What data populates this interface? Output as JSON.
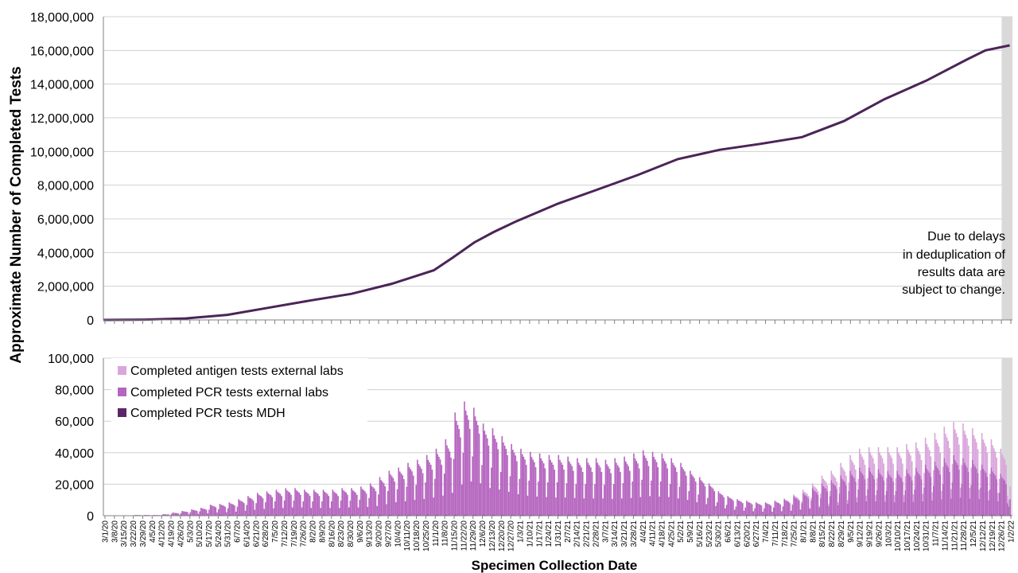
{
  "colors": {
    "cumulative_line": "#4B2458",
    "pcr_mdh": "#5C2566",
    "pcr_external": "#B565BF",
    "antigen_external": "#D9A6DC",
    "shade": "#D9D9D9",
    "grid": "#D0D0D0",
    "axis": "#808080"
  },
  "y_axis_label": "Approximate Number of Completed Tests",
  "x_axis_label": "Specimen Collection Date",
  "note_lines": [
    "Due to delays",
    "in deduplication of",
    "results data are",
    "subject to change."
  ],
  "chart_data": [
    {
      "type": "line",
      "title": "",
      "ylim": [
        0,
        18000000
      ],
      "y_ticks": [
        0,
        2000000,
        4000000,
        6000000,
        8000000,
        10000000,
        12000000,
        14000000,
        16000000,
        18000000
      ],
      "y_tick_labels": [
        "0",
        "2,000,000",
        "4,000,000",
        "6,000,000",
        "8,000,000",
        "10,000,000",
        "12,000,000",
        "14,000,000",
        "16,000,000",
        "18,000,000"
      ],
      "grid": true,
      "shaded_region": [
        "2021-12-27",
        "2022-01-02"
      ],
      "x": [
        "2020-03-01",
        "2020-04-01",
        "2020-05-01",
        "2020-06-01",
        "2020-07-01",
        "2020-08-01",
        "2020-09-01",
        "2020-10-01",
        "2020-11-01",
        "2020-11-15",
        "2020-12-01",
        "2020-12-15",
        "2021-01-01",
        "2021-02-01",
        "2021-03-01",
        "2021-04-01",
        "2021-05-01",
        "2021-06-01",
        "2021-07-01",
        "2021-08-01",
        "2021-09-01",
        "2021-10-01",
        "2021-11-01",
        "2021-12-01",
        "2021-12-15",
        "2022-01-02"
      ],
      "series": [
        {
          "name": "",
          "values": [
            0,
            20000,
            90000,
            300000,
            720000,
            1150000,
            1550000,
            2150000,
            2950000,
            3700000,
            4600000,
            5200000,
            5850000,
            6900000,
            7700000,
            8600000,
            9550000,
            10100000,
            10450000,
            10850000,
            11800000,
            13100000,
            14200000,
            15450000,
            16000000,
            16300000
          ]
        }
      ]
    },
    {
      "type": "bar",
      "title": "",
      "stacked": true,
      "ylim": [
        0,
        100000
      ],
      "y_ticks": [
        0,
        20000,
        40000,
        60000,
        80000,
        100000
      ],
      "y_tick_labels": [
        "0",
        "20,000",
        "40,000",
        "60,000",
        "80,000",
        "100,000"
      ],
      "grid": true,
      "legend_position": "top-left",
      "x_tick_labels": [
        "3/1/20",
        "3/8/20",
        "3/15/20",
        "3/22/20",
        "3/29/20",
        "4/5/20",
        "4/12/20",
        "4/19/20",
        "4/26/20",
        "5/3/20",
        "5/10/20",
        "5/17/20",
        "5/24/20",
        "5/31/20",
        "6/7/20",
        "6/14/20",
        "6/21/20",
        "6/28/20",
        "7/5/20",
        "7/12/20",
        "7/19/20",
        "7/26/20",
        "8/2/20",
        "8/9/20",
        "8/16/20",
        "8/23/20",
        "8/30/20",
        "9/6/20",
        "9/13/20",
        "9/20/20",
        "9/27/20",
        "10/4/20",
        "10/11/20",
        "10/18/20",
        "10/25/20",
        "11/1/20",
        "11/8/20",
        "11/15/20",
        "11/22/20",
        "11/29/20",
        "12/6/20",
        "12/13/20",
        "12/20/20",
        "12/27/20",
        "1/3/21",
        "1/10/21",
        "1/17/21",
        "1/24/21",
        "1/31/21",
        "2/7/21",
        "2/14/21",
        "2/21/21",
        "2/28/21",
        "3/7/21",
        "3/14/21",
        "3/21/21",
        "3/28/21",
        "4/4/21",
        "4/11/21",
        "4/18/21",
        "4/25/21",
        "5/2/21",
        "5/9/21",
        "5/16/21",
        "5/23/21",
        "5/30/21",
        "6/6/21",
        "6/13/21",
        "6/20/21",
        "6/27/21",
        "7/4/21",
        "7/11/21",
        "7/18/21",
        "7/25/21",
        "8/1/21",
        "8/8/21",
        "8/15/21",
        "8/22/21",
        "8/29/21",
        "9/5/21",
        "9/12/21",
        "9/19/21",
        "9/26/21",
        "10/3/21",
        "10/10/21",
        "10/17/21",
        "10/24/21",
        "10/31/21",
        "11/7/21",
        "11/14/21",
        "11/21/21",
        "11/28/21",
        "12/5/21",
        "12/12/21",
        "12/19/21",
        "12/26/21",
        "1/2/22"
      ],
      "series": [
        {
          "name": "Completed antigen tests external labs",
          "weekly_peak_values": [
            0,
            0,
            0,
            0,
            0,
            0,
            0,
            0,
            0,
            0,
            0,
            0,
            0,
            0,
            0,
            0,
            0,
            0,
            0,
            0,
            0,
            0,
            0,
            0,
            0,
            0,
            0,
            0,
            0,
            0,
            0,
            0,
            0,
            0,
            0,
            0,
            0,
            0,
            0,
            0,
            0,
            0,
            0,
            0,
            0,
            0,
            0,
            0,
            0,
            0,
            0,
            0,
            0,
            0,
            0,
            0,
            0,
            0,
            0,
            0,
            0,
            0,
            0,
            0,
            0,
            0,
            0,
            0,
            0,
            0,
            0,
            0,
            500,
            1000,
            2000,
            3000,
            5000,
            6000,
            8000,
            10000,
            12000,
            13000,
            14000,
            15000,
            15000,
            16000,
            16000,
            17000,
            18000,
            20000,
            21000,
            22000,
            20000,
            20000,
            18000,
            16000,
            8000
          ]
        },
        {
          "name": "Completed PCR tests external labs",
          "weekly_peak_values": [
            0,
            0,
            0,
            500,
            500,
            500,
            1000,
            2000,
            3000,
            4000,
            5000,
            7000,
            7000,
            8000,
            10000,
            12000,
            14000,
            15000,
            16000,
            17000,
            17000,
            16000,
            16000,
            16000,
            16000,
            17000,
            17000,
            18000,
            20000,
            24000,
            28000,
            30000,
            33000,
            35000,
            38000,
            42000,
            48000,
            65000,
            72000,
            68000,
            58000,
            55000,
            50000,
            45000,
            42000,
            40000,
            39000,
            38000,
            38000,
            37000,
            36000,
            36000,
            36000,
            35000,
            36000,
            37000,
            39000,
            41000,
            40000,
            39000,
            36000,
            33000,
            28000,
            24000,
            20000,
            15000,
            12000,
            10000,
            9000,
            8000,
            8000,
            9000,
            10000,
            12000,
            14000,
            17000,
            20000,
            22000,
            25000,
            28000,
            30000,
            30000,
            29000,
            28000,
            28000,
            29000,
            30000,
            32000,
            34000,
            36000,
            38000,
            36000,
            35000,
            32000,
            30000,
            26000,
            10000
          ]
        },
        {
          "name": "Completed PCR tests MDH",
          "weekly_peak_values": [
            0,
            0,
            0,
            0,
            0,
            0,
            0,
            0,
            0,
            0,
            0,
            0,
            500,
            500,
            500,
            500,
            500,
            500,
            500,
            500,
            500,
            500,
            500,
            500,
            500,
            500,
            500,
            500,
            500,
            500,
            500,
            500,
            500,
            500,
            500,
            500,
            500,
            500,
            500,
            500,
            500,
            500,
            500,
            500,
            500,
            500,
            500,
            500,
            500,
            500,
            500,
            500,
            500,
            500,
            500,
            500,
            500,
            500,
            500,
            500,
            500,
            500,
            500,
            500,
            500,
            500,
            500,
            500,
            500,
            500,
            500,
            500,
            500,
            500,
            500,
            500,
            500,
            500,
            500,
            500,
            500,
            500,
            500,
            500,
            500,
            500,
            500,
            500,
            500,
            500,
            500,
            500,
            500,
            500,
            500,
            500,
            500
          ]
        }
      ]
    }
  ]
}
